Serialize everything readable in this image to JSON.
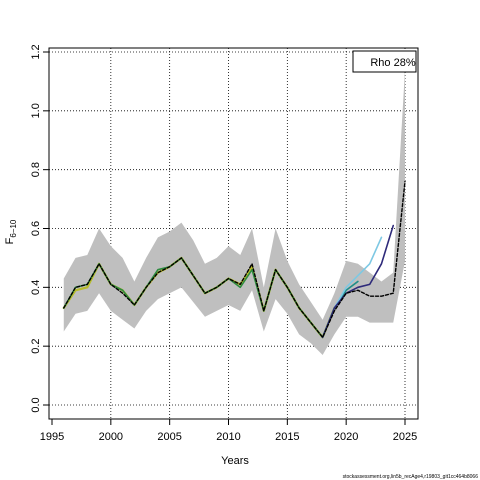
{
  "chart_data": {
    "type": "line",
    "title": "",
    "xlabel": "Years",
    "ylabel": "F",
    "ylabel_subscript": "6−10",
    "xlim": [
      1995,
      2025
    ],
    "ylim": [
      0,
      1.2
    ],
    "xticks": [
      1995,
      2000,
      2005,
      2010,
      2015,
      2020,
      2025
    ],
    "yticks": [
      0.0,
      0.2,
      0.4,
      0.6,
      0.8,
      1.0,
      1.2
    ],
    "ytick_labels": [
      "0.0",
      "0.2",
      "0.4",
      "0.6",
      "0.8",
      "1.0",
      "1.2"
    ],
    "grid": true,
    "legend": {
      "position": "top-right",
      "text": "Rho 28%"
    },
    "confidence_band": {
      "color": "#bfbfbf",
      "x": [
        1996,
        1997,
        1998,
        1999,
        2000,
        2001,
        2002,
        2003,
        2004,
        2005,
        2006,
        2007,
        2008,
        2009,
        2010,
        2011,
        2012,
        2013,
        2014,
        2015,
        2016,
        2017,
        2018,
        2019,
        2020,
        2021,
        2022,
        2023,
        2024,
        2025
      ],
      "upper": [
        0.43,
        0.5,
        0.51,
        0.6,
        0.54,
        0.5,
        0.42,
        0.5,
        0.57,
        0.59,
        0.62,
        0.56,
        0.48,
        0.5,
        0.54,
        0.51,
        0.6,
        0.4,
        0.6,
        0.49,
        0.41,
        0.35,
        0.29,
        0.38,
        0.49,
        0.48,
        0.45,
        0.42,
        0.45,
        1.14
      ],
      "lower": [
        0.25,
        0.31,
        0.32,
        0.38,
        0.32,
        0.29,
        0.26,
        0.32,
        0.36,
        0.38,
        0.4,
        0.35,
        0.3,
        0.32,
        0.34,
        0.32,
        0.39,
        0.25,
        0.36,
        0.31,
        0.24,
        0.21,
        0.17,
        0.24,
        0.3,
        0.3,
        0.28,
        0.28,
        0.28,
        0.49
      ]
    },
    "series": [
      {
        "color": "#b8bc2a",
        "width": 2.2,
        "dash": "",
        "x": [
          1996,
          1997,
          1998,
          1999,
          2000,
          2001,
          2002,
          2003,
          2004,
          2005,
          2006,
          2007,
          2008,
          2009,
          2010,
          2011,
          2012,
          2013,
          2014,
          2015,
          2016,
          2017,
          2018,
          2019
        ],
        "y": [
          0.33,
          0.39,
          0.4,
          0.48,
          0.41,
          0.39,
          0.34,
          0.4,
          0.45,
          0.47,
          0.5,
          0.44,
          0.38,
          0.4,
          0.43,
          0.41,
          0.47,
          0.32,
          0.46,
          0.4,
          0.33,
          0.28,
          0.23,
          0.33
        ]
      },
      {
        "color": "#2e8b40",
        "width": 1.6,
        "dash": "",
        "x": [
          1996,
          1997,
          1998,
          1999,
          2000,
          2001,
          2002,
          2003,
          2004,
          2005,
          2006,
          2007,
          2008,
          2009,
          2010,
          2011,
          2012,
          2013,
          2014,
          2015,
          2016,
          2017,
          2018,
          2019,
          2020
        ],
        "y": [
          0.33,
          0.4,
          0.41,
          0.48,
          0.41,
          0.39,
          0.34,
          0.4,
          0.46,
          0.47,
          0.5,
          0.44,
          0.38,
          0.4,
          0.43,
          0.4,
          0.46,
          0.32,
          0.46,
          0.4,
          0.33,
          0.28,
          0.23,
          0.33,
          0.38
        ]
      },
      {
        "color": "#1f8f8a",
        "width": 1.6,
        "dash": "",
        "x": [
          2018,
          2019,
          2020,
          2021
        ],
        "y": [
          0.23,
          0.33,
          0.39,
          0.42
        ]
      },
      {
        "color": "#7ec8e3",
        "width": 1.6,
        "dash": "",
        "x": [
          2018,
          2019,
          2020,
          2021,
          2022,
          2023
        ],
        "y": [
          0.23,
          0.33,
          0.4,
          0.44,
          0.48,
          0.57
        ]
      },
      {
        "color": "#2e2a7a",
        "width": 1.6,
        "dash": "",
        "x": [
          2018,
          2019,
          2020,
          2021,
          2022,
          2023,
          2024
        ],
        "y": [
          0.23,
          0.33,
          0.38,
          0.4,
          0.41,
          0.48,
          0.61
        ]
      },
      {
        "color": "#000000",
        "width": 1.4,
        "dash": "3 2",
        "x": [
          1996,
          1997,
          1998,
          1999,
          2000,
          2001,
          2002,
          2003,
          2004,
          2005,
          2006,
          2007,
          2008,
          2009,
          2010,
          2011,
          2012,
          2013,
          2014,
          2015,
          2016,
          2017,
          2018,
          2019,
          2020,
          2021,
          2022,
          2023,
          2024,
          2025
        ],
        "y": [
          0.33,
          0.4,
          0.41,
          0.48,
          0.41,
          0.38,
          0.34,
          0.4,
          0.45,
          0.47,
          0.5,
          0.44,
          0.38,
          0.4,
          0.43,
          0.41,
          0.48,
          0.32,
          0.46,
          0.4,
          0.33,
          0.28,
          0.23,
          0.32,
          0.38,
          0.39,
          0.37,
          0.37,
          0.38,
          0.76
        ]
      }
    ]
  },
  "footer": {
    "text": "stockassessment.org,lin5b_recAge4,r19803_git1cc464b8066"
  }
}
